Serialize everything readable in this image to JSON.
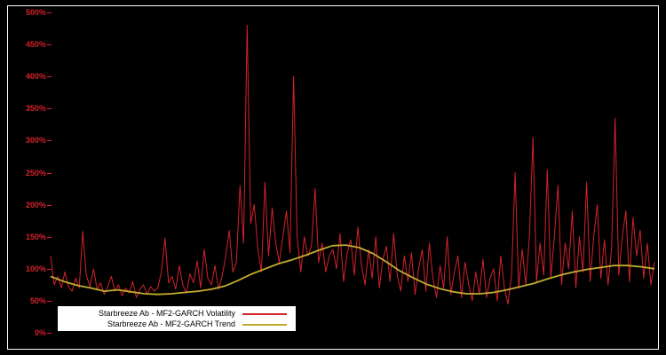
{
  "chart_data": {
    "type": "line",
    "title": "",
    "xlabel": "",
    "ylabel": "",
    "ylim": [
      0,
      500
    ],
    "ytick_values": [
      0,
      50,
      100,
      150,
      200,
      250,
      300,
      350,
      400,
      450,
      500
    ],
    "yticks": [
      "0%",
      "50%",
      "100%",
      "150%",
      "200%",
      "250%",
      "300%",
      "350%",
      "400%",
      "450%",
      "500%"
    ],
    "xticks": [],
    "grid": false,
    "background_color": "#000000",
    "frame_color": "#ffffff",
    "axis_label_color": "#d2222a",
    "legend": {
      "position": "bottom-left",
      "background": "#ffffff",
      "border_color": "#000000",
      "text_color": "#000000"
    },
    "series": [
      {
        "name": "Starbreeze Ab - MF2-GARCH Volatility",
        "color": "#d2222a",
        "stroke_width": 1,
        "values": [
          120,
          75,
          88,
          70,
          95,
          72,
          65,
          85,
          70,
          158,
          90,
          72,
          100,
          68,
          78,
          60,
          72,
          88,
          65,
          75,
          58,
          70,
          62,
          80,
          55,
          68,
          75,
          60,
          72,
          65,
          70,
          95,
          148,
          78,
          88,
          68,
          105,
          75,
          62,
          92,
          78,
          112,
          70,
          130,
          85,
          75,
          105,
          68,
          88,
          120,
          160,
          95,
          110,
          230,
          140,
          480,
          170,
          200,
          130,
          95,
          235,
          120,
          195,
          140,
          110,
          150,
          190,
          125,
          400,
          150,
          95,
          150,
          120,
          135,
          225,
          110,
          140,
          95,
          120,
          130,
          100,
          155,
          80,
          125,
          145,
          90,
          165,
          105,
          75,
          130,
          85,
          150,
          70,
          115,
          135,
          80,
          155,
          90,
          65,
          120,
          80,
          125,
          60,
          100,
          130,
          65,
          140,
          85,
          55,
          105,
          70,
          150,
          60,
          95,
          120,
          55,
          110,
          75,
          50,
          95,
          60,
          115,
          55,
          85,
          100,
          50,
          120,
          70,
          45,
          90,
          250,
          70,
          130,
          75,
          150,
          305,
          80,
          140,
          90,
          255,
          85,
          150,
          230,
          75,
          140,
          100,
          190,
          70,
          150,
          95,
          235,
          80,
          150,
          200,
          85,
          145,
          75,
          130,
          335,
          90,
          150,
          190,
          80,
          180,
          120,
          160,
          85,
          140,
          75,
          110
        ]
      },
      {
        "name": "Starbreeze Ab - MF2-GARCH Trend",
        "color": "#c3ab2f",
        "stroke_width": 1.8,
        "values": [
          88,
          80,
          74,
          70,
          65,
          67,
          64,
          61,
          60,
          61,
          63,
          65,
          68,
          73,
          82,
          92,
          100,
          108,
          114,
          121,
          129,
          136,
          137,
          133,
          124,
          111,
          97,
          86,
          76,
          69,
          64,
          61,
          61,
          63,
          67,
          72,
          77,
          84,
          90,
          95,
          99,
          102,
          105,
          105,
          103,
          100
        ]
      }
    ]
  }
}
